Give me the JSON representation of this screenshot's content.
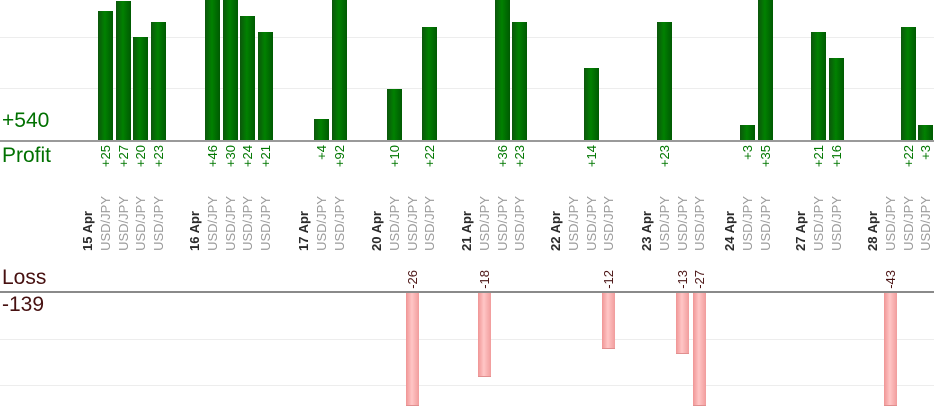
{
  "chart_data": {
    "type": "bar",
    "title": "",
    "description": "Per-trade profit (green, top panel) and loss (pink, bottom panel) bars grouped by trade date",
    "profit": {
      "axis_label": "Profit",
      "total_label": "+540",
      "total": 540,
      "visible_ylim": [
        0,
        27
      ],
      "grid_step": 10
    },
    "loss": {
      "axis_label": "Loss",
      "total_label": "-139",
      "total": -139,
      "visible_ylim": [
        -24.5,
        0
      ],
      "grid_step": 10
    },
    "grid": true,
    "legend": false,
    "groups": [
      {
        "date": "15 Apr",
        "trades": [
          {
            "instrument": "USD/JPY",
            "value": 25,
            "label": "+25"
          },
          {
            "instrument": "USD/JPY",
            "value": 27,
            "label": "+27"
          },
          {
            "instrument": "USD/JPY",
            "value": 20,
            "label": "+20"
          },
          {
            "instrument": "USD/JPY",
            "value": 23,
            "label": "+23"
          }
        ]
      },
      {
        "date": "16 Apr",
        "trades": [
          {
            "instrument": "USD/JPY",
            "value": 46,
            "label": "+46"
          },
          {
            "instrument": "USD/JPY",
            "value": 30,
            "label": "+30"
          },
          {
            "instrument": "USD/JPY",
            "value": 24,
            "label": "+24"
          },
          {
            "instrument": "USD/JPY",
            "value": 21,
            "label": "+21"
          }
        ]
      },
      {
        "date": "17 Apr",
        "trades": [
          {
            "instrument": "USD/JPY",
            "value": 4,
            "label": "+4"
          },
          {
            "instrument": "USD/JPY",
            "value": 92,
            "label": "+92"
          }
        ]
      },
      {
        "date": "20 Apr",
        "trades": [
          {
            "instrument": "USD/JPY",
            "value": 10,
            "label": "+10"
          },
          {
            "instrument": "USD/JPY",
            "value": -26,
            "label": "-26"
          },
          {
            "instrument": "USD/JPY",
            "value": 22,
            "label": "+22"
          }
        ]
      },
      {
        "date": "21 Apr",
        "trades": [
          {
            "instrument": "USD/JPY",
            "value": -18,
            "label": "-18"
          },
          {
            "instrument": "USD/JPY",
            "value": 36,
            "label": "+36"
          },
          {
            "instrument": "USD/JPY",
            "value": 23,
            "label": "+23"
          }
        ]
      },
      {
        "date": "22 Apr",
        "trades": [
          {
            "instrument": "USD/JPY",
            "value": 0,
            "label": ""
          },
          {
            "instrument": "USD/JPY",
            "value": 14,
            "label": "+14"
          },
          {
            "instrument": "USD/JPY",
            "value": -12,
            "label": "-12"
          }
        ]
      },
      {
        "date": "23 Apr",
        "trades": [
          {
            "instrument": "USD/JPY",
            "value": 23,
            "label": "+23"
          },
          {
            "instrument": "USD/JPY",
            "value": -13,
            "label": "-13"
          },
          {
            "instrument": "USD/JPY",
            "value": -27,
            "label": "-27"
          }
        ]
      },
      {
        "date": "24 Apr",
        "trades": [
          {
            "instrument": "USD/JPY",
            "value": 3,
            "label": "+3"
          },
          {
            "instrument": "USD/JPY",
            "value": 35,
            "label": "+35"
          }
        ]
      },
      {
        "date": "27 Apr",
        "trades": [
          {
            "instrument": "USD/JPY",
            "value": 21,
            "label": "+21"
          },
          {
            "instrument": "USD/JPY",
            "value": 16,
            "label": "+16"
          }
        ]
      },
      {
        "date": "28 Apr",
        "trades": [
          {
            "instrument": "USD/JPY",
            "value": -43,
            "label": "-43"
          },
          {
            "instrument": "USD/JPY",
            "value": 22,
            "label": "+22"
          },
          {
            "instrument": "USD/JPY",
            "value": 3,
            "label": "+3"
          }
        ]
      }
    ],
    "colors": {
      "profit_bar": "#017e01",
      "profit_text": "#007700",
      "loss_bar": "#ffc6c6",
      "loss_text": "#4d1717",
      "date_text": "#2b2b2b",
      "instrument_text": "#9b9b9b",
      "axis_line": "#9a9a9a",
      "gridline": "#ededed"
    }
  }
}
